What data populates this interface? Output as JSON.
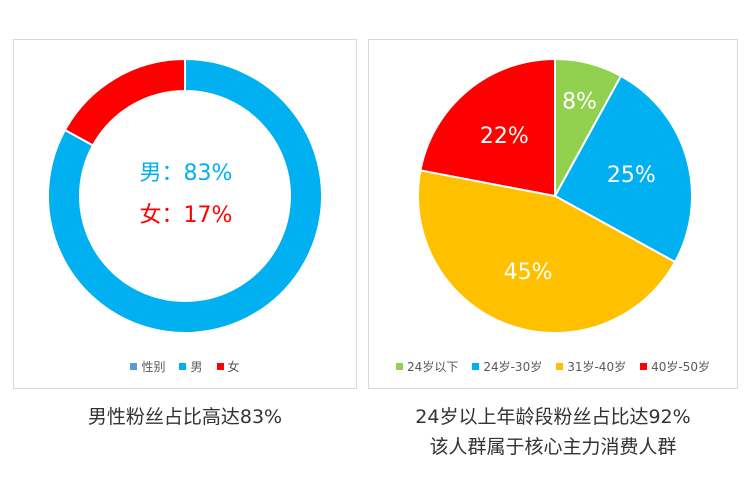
{
  "colors": {
    "blue": "#00B0F0",
    "red": "#FF0000",
    "green": "#92D050",
    "yellow": "#FFC000",
    "legend_steel": "#5B9BD5"
  },
  "gender_panel": {
    "center_male": "男：83%",
    "center_female": "女：17%",
    "legend": [
      {
        "label": "性别",
        "color": "#5B9BD5"
      },
      {
        "label": "男",
        "color": "#00B0F0"
      },
      {
        "label": "女",
        "color": "#FF0000"
      }
    ],
    "caption": "男性粉丝占比高达83%"
  },
  "age_panel": {
    "legend": [
      {
        "label": "24岁以下",
        "color": "#92D050"
      },
      {
        "label": "24岁-30岁",
        "color": "#00B0F0"
      },
      {
        "label": "31岁-40岁",
        "color": "#FFC000"
      },
      {
        "label": "40岁-50岁",
        "color": "#FF0000"
      }
    ],
    "slice_labels": [
      "8%",
      "25%",
      "45%",
      "22%"
    ],
    "caption_line1": "24岁以上年龄段粉丝占比达92%",
    "caption_line2": "该人群属于核心主力消费人群"
  },
  "chart_data": [
    {
      "type": "pie",
      "variant": "donut",
      "title": "性别",
      "categories": [
        "男",
        "女"
      ],
      "values": [
        83,
        17
      ],
      "unit": "%",
      "colors": [
        "#00B0F0",
        "#FF0000"
      ],
      "center_annotations": [
        "男：83%",
        "女：17%"
      ],
      "legend_entries": [
        "性别",
        "男",
        "女"
      ],
      "legend_position": "bottom",
      "caption": "男性粉丝占比高达83%"
    },
    {
      "type": "pie",
      "title": "",
      "categories": [
        "24岁以下",
        "24岁-30岁",
        "31岁-40岁",
        "40岁-50岁"
      ],
      "values": [
        8,
        25,
        45,
        22
      ],
      "unit": "%",
      "colors": [
        "#92D050",
        "#00B0F0",
        "#FFC000",
        "#FF0000"
      ],
      "data_labels": [
        "8%",
        "25%",
        "45%",
        "22%"
      ],
      "legend_position": "bottom",
      "caption": [
        "24岁以上年龄段粉丝占比达92%",
        "该人群属于核心主力消费人群"
      ]
    }
  ]
}
